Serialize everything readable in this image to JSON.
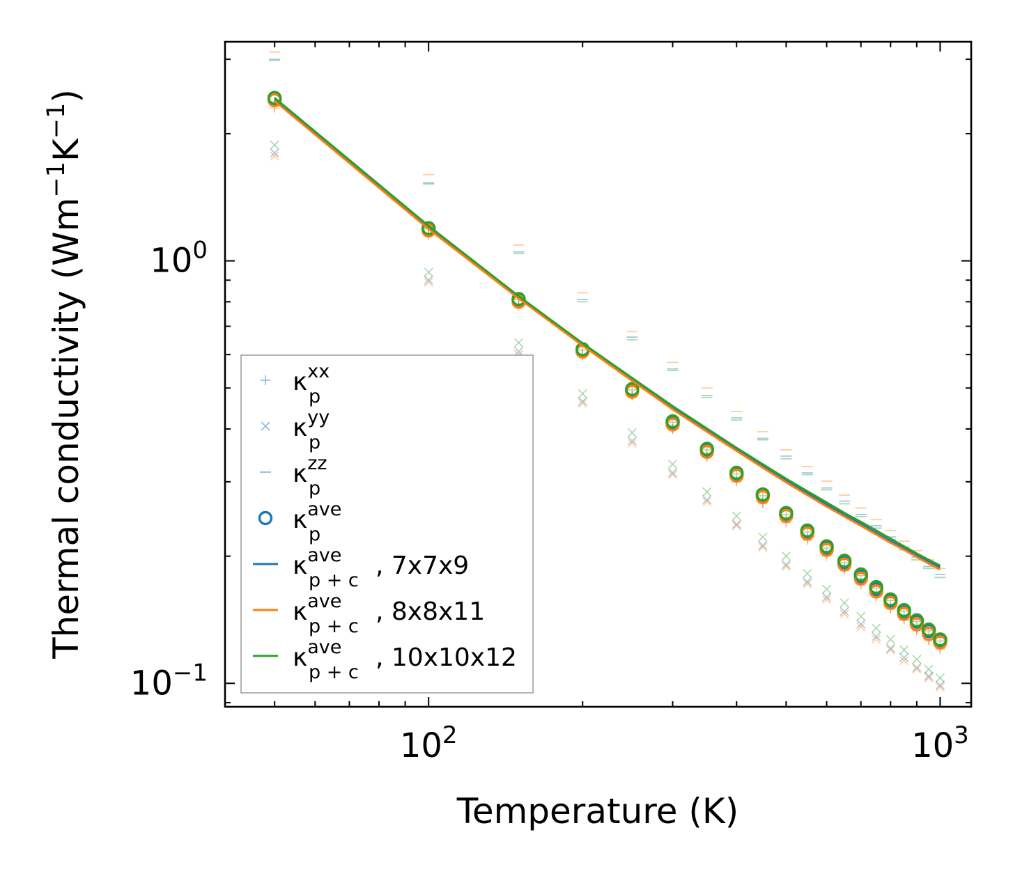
{
  "chart_data": {
    "type": "scatter",
    "title": "",
    "xlabel": "Temperature (K)",
    "ylabel_main": "Thermal conductivity (Wm",
    "ylabel_sup1": "−1",
    "ylabel_mid": "K",
    "ylabel_sup2": "−1",
    "ylabel_end": ")",
    "xscale": "log",
    "yscale": "log",
    "xlim": [
      40,
      1150
    ],
    "ylim": [
      0.088,
      3.3
    ],
    "x_ticks": [
      {
        "base": "10",
        "exp": "2",
        "value": 100
      },
      {
        "base": "10",
        "exp": "3",
        "value": 1000
      }
    ],
    "y_ticks": [
      {
        "base": "10",
        "exp": "0",
        "value": 1
      },
      {
        "base": "10",
        "exp": "−1",
        "value": 0.1
      }
    ],
    "x": [
      50,
      100,
      150,
      200,
      250,
      300,
      350,
      400,
      450,
      500,
      550,
      600,
      650,
      700,
      750,
      800,
      850,
      900,
      950,
      1000
    ],
    "colors": {
      "blue": "#1f77b4",
      "orange": "#ff7f0e",
      "green": "#2ca02c"
    },
    "series": [
      {
        "name": "κp_xx 7x7x9",
        "color": "blue",
        "marker": "plus",
        "alpha": 0.4,
        "values": [
          2.33,
          1.16,
          0.79,
          0.6,
          0.48,
          0.4,
          0.345,
          0.302,
          0.268,
          0.242,
          0.22,
          0.202,
          0.187,
          0.173,
          0.161,
          0.151,
          0.142,
          0.134,
          0.127,
          0.121
        ]
      },
      {
        "name": "κp_xx 8x8x11",
        "color": "orange",
        "marker": "plus",
        "alpha": 0.4,
        "values": [
          2.3,
          1.15,
          0.78,
          0.595,
          0.48,
          0.4,
          0.343,
          0.3,
          0.266,
          0.24,
          0.218,
          0.2,
          0.185,
          0.171,
          0.16,
          0.15,
          0.141,
          0.133,
          0.126,
          0.12
        ]
      },
      {
        "name": "κp_xx 10x10x12",
        "color": "green",
        "marker": "plus",
        "alpha": 0.4,
        "values": [
          2.38,
          1.19,
          0.81,
          0.615,
          0.495,
          0.415,
          0.357,
          0.313,
          0.278,
          0.251,
          0.228,
          0.209,
          0.193,
          0.18,
          0.168,
          0.157,
          0.148,
          0.14,
          0.133,
          0.126
        ]
      },
      {
        "name": "κp_yy 7x7x9",
        "color": "blue",
        "marker": "x",
        "alpha": 0.4,
        "values": [
          1.8,
          0.9,
          0.61,
          0.465,
          0.375,
          0.315,
          0.272,
          0.238,
          0.212,
          0.191,
          0.174,
          0.16,
          0.148,
          0.138,
          0.129,
          0.121,
          0.115,
          0.109,
          0.104,
          0.099
        ]
      },
      {
        "name": "κp_yy 8x8x11",
        "color": "orange",
        "marker": "x",
        "alpha": 0.4,
        "values": [
          1.77,
          0.89,
          0.6,
          0.46,
          0.37,
          0.312,
          0.269,
          0.236,
          0.21,
          0.189,
          0.172,
          0.158,
          0.146,
          0.136,
          0.127,
          0.12,
          0.113,
          0.108,
          0.103,
          0.098
        ]
      },
      {
        "name": "κp_yy 10x10x12",
        "color": "green",
        "marker": "x",
        "alpha": 0.4,
        "values": [
          1.88,
          0.94,
          0.64,
          0.485,
          0.392,
          0.33,
          0.284,
          0.249,
          0.222,
          0.2,
          0.182,
          0.167,
          0.155,
          0.144,
          0.135,
          0.127,
          0.12,
          0.114,
          0.108,
          0.103
        ]
      },
      {
        "name": "κp_zz 7x7x9",
        "color": "blue",
        "marker": "hline",
        "alpha": 0.4,
        "values": [
          3.0,
          1.53,
          1.05,
          0.81,
          0.66,
          0.555,
          0.48,
          0.425,
          0.38,
          0.345,
          0.315,
          0.29,
          0.27,
          0.251,
          0.236,
          0.222,
          0.21,
          0.199,
          0.189,
          0.181
        ]
      },
      {
        "name": "κp_zz 8x8x11",
        "color": "orange",
        "marker": "hline",
        "alpha": 0.4,
        "values": [
          3.12,
          1.6,
          1.09,
          0.84,
          0.68,
          0.575,
          0.5,
          0.44,
          0.394,
          0.357,
          0.326,
          0.301,
          0.279,
          0.26,
          0.244,
          0.23,
          0.217,
          0.206,
          0.196,
          0.187
        ]
      },
      {
        "name": "κp_zz 10x10x12",
        "color": "green",
        "marker": "hline",
        "alpha": 0.4,
        "values": [
          2.98,
          1.52,
          1.04,
          0.8,
          0.65,
          0.55,
          0.475,
          0.42,
          0.377,
          0.34,
          0.312,
          0.287,
          0.266,
          0.248,
          0.233,
          0.219,
          0.207,
          0.196,
          0.187,
          0.178
        ]
      },
      {
        "name": "κp_ave 7x7x9",
        "color": "blue",
        "marker": "circle",
        "alpha": 1,
        "values": [
          2.42,
          1.19,
          0.81,
          0.615,
          0.495,
          0.415,
          0.357,
          0.313,
          0.279,
          0.251,
          0.228,
          0.209,
          0.193,
          0.179,
          0.167,
          0.157,
          0.148,
          0.14,
          0.133,
          0.126
        ]
      },
      {
        "name": "κp_ave 8x8x11",
        "color": "orange",
        "marker": "circle",
        "alpha": 1,
        "values": [
          2.4,
          1.18,
          0.8,
          0.61,
          0.49,
          0.41,
          0.353,
          0.31,
          0.276,
          0.249,
          0.226,
          0.207,
          0.191,
          0.177,
          0.165,
          0.155,
          0.146,
          0.138,
          0.131,
          0.125
        ]
      },
      {
        "name": "κp_ave 10x10x12",
        "color": "green",
        "marker": "circle",
        "alpha": 1,
        "values": [
          2.43,
          1.195,
          0.812,
          0.618,
          0.497,
          0.417,
          0.359,
          0.315,
          0.28,
          0.253,
          0.23,
          0.211,
          0.195,
          0.181,
          0.169,
          0.158,
          0.149,
          0.141,
          0.134,
          0.127
        ]
      }
    ],
    "lines": [
      {
        "name": "κp+c_ave 7x7x9",
        "color": "blue",
        "values": [
          2.41,
          1.2,
          0.82,
          0.635,
          0.525,
          0.45,
          0.398,
          0.358,
          0.327,
          0.302,
          0.282,
          0.265,
          0.251,
          0.238,
          0.227,
          0.217,
          0.209,
          0.201,
          0.194,
          0.188
        ]
      },
      {
        "name": "κp+c_ave 8x8x11",
        "color": "orange",
        "values": [
          2.39,
          1.19,
          0.815,
          0.63,
          0.52,
          0.445,
          0.394,
          0.355,
          0.324,
          0.299,
          0.279,
          0.262,
          0.248,
          0.236,
          0.225,
          0.215,
          0.207,
          0.199,
          0.192,
          0.186
        ]
      },
      {
        "name": "κp+c_ave 10x10x12",
        "color": "green",
        "values": [
          2.43,
          1.21,
          0.825,
          0.638,
          0.528,
          0.453,
          0.401,
          0.361,
          0.33,
          0.305,
          0.285,
          0.268,
          0.253,
          0.241,
          0.23,
          0.22,
          0.211,
          0.203,
          0.196,
          0.19
        ]
      }
    ],
    "legend": {
      "position": "lower-left",
      "entries": [
        {
          "base": "κ",
          "sup": "xx",
          "sub": "p",
          "tail": "",
          "marker": "plus",
          "color": "blue"
        },
        {
          "base": "κ",
          "sup": "yy",
          "sub": "p",
          "tail": "",
          "marker": "x",
          "color": "blue"
        },
        {
          "base": "κ",
          "sup": "zz",
          "sub": "p",
          "tail": "",
          "marker": "hline",
          "color": "blue"
        },
        {
          "base": "κ",
          "sup": "ave",
          "sub": "p",
          "tail": "",
          "marker": "circle",
          "color": "blue"
        },
        {
          "base": "κ",
          "sup": "ave",
          "sub": "p + c",
          "tail": ", 7x7x9",
          "marker": "line",
          "color": "blue"
        },
        {
          "base": "κ",
          "sup": "ave",
          "sub": "p + c",
          "tail": ", 8x8x11",
          "marker": "line",
          "color": "orange"
        },
        {
          "base": "κ",
          "sup": "ave",
          "sub": "p + c",
          "tail": ", 10x10x12",
          "marker": "line",
          "color": "green"
        }
      ]
    }
  }
}
